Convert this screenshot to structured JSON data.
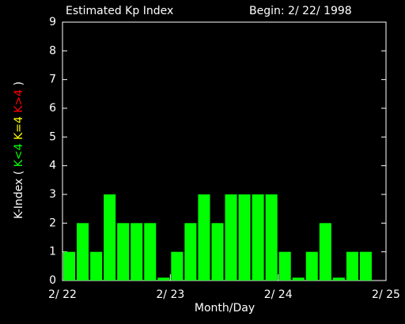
{
  "chart_data": {
    "type": "bar",
    "title": "Estimated Kp Index",
    "subtitle": "Begin: 2/ 22/ 1998",
    "xlabel": "Month/Day",
    "ylabel": "K-Index (",
    "ylabel_end": ")",
    "legend": [
      {
        "label": "K<4",
        "color": "#00ff00"
      },
      {
        "label": "K=4",
        "color": "#ffff00"
      },
      {
        "label": "K>4",
        "color": "#ff0000"
      }
    ],
    "x": [
      0,
      0.125,
      0.25,
      0.375,
      0.5,
      0.625,
      0.75,
      0.875,
      1,
      1.125,
      1.25,
      1.375,
      1.5,
      1.625,
      1.75,
      1.875,
      2,
      2.125,
      2.25,
      2.375,
      2.5,
      2.625,
      2.75
    ],
    "values": [
      1,
      2,
      1,
      3,
      2,
      2,
      2,
      0.1,
      1,
      2,
      3,
      2,
      3,
      3,
      3,
      3,
      1,
      0.1,
      1,
      2,
      0.1,
      1,
      1
    ],
    "color": "#00ff00",
    "xlim": [
      0,
      3
    ],
    "xticks": [
      {
        "value": 0,
        "label": "2/ 22"
      },
      {
        "value": 1,
        "label": "2/ 23"
      },
      {
        "value": 2,
        "label": "2/ 24"
      },
      {
        "value": 3,
        "label": "2/ 25"
      }
    ],
    "ylim": [
      0,
      9
    ],
    "yticks": [
      0,
      1,
      2,
      3,
      4,
      5,
      6,
      7,
      8,
      9
    ]
  }
}
